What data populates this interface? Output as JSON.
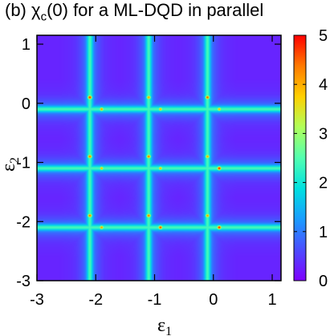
{
  "chart_data": {
    "type": "heatmap",
    "title_prefix": "(b) ",
    "title_symbol": "χ",
    "title_subscript": "c",
    "title_suffix": "(0) for a ML-DQD in parallel",
    "xlabel_symbol": "ε",
    "xlabel_subscript": "1",
    "ylabel_symbol": "ε",
    "ylabel_subscript": "2",
    "xlim": [
      -3,
      1.15
    ],
    "ylim": [
      -3,
      1.15
    ],
    "x_ticks": [
      -3,
      -2,
      -1,
      0,
      1
    ],
    "y_ticks": [
      -3,
      -2,
      -1,
      0,
      1
    ],
    "colorbar_range": [
      0,
      5
    ],
    "colorbar_ticks": [
      0,
      1,
      2,
      3,
      4,
      5
    ],
    "colormap": "jet",
    "line_positions": [
      -2.1,
      -1.1,
      -0.1
    ],
    "band_peak_value": 2.3,
    "background_value": 0.3,
    "hotspots": [
      {
        "x": -2.1,
        "y": 0.1,
        "value": 5.0
      },
      {
        "x": -1.9,
        "y": -0.1,
        "value": 4.3
      },
      {
        "x": -1.1,
        "y": 0.1,
        "value": 4.3
      },
      {
        "x": -0.9,
        "y": -0.1,
        "value": 4.0
      },
      {
        "x": -0.1,
        "y": 0.1,
        "value": 4.8
      },
      {
        "x": 0.1,
        "y": -0.1,
        "value": 4.0
      },
      {
        "x": -2.1,
        "y": -0.9,
        "value": 4.6
      },
      {
        "x": -1.9,
        "y": -1.1,
        "value": 4.0
      },
      {
        "x": -1.1,
        "y": -0.9,
        "value": 4.6
      },
      {
        "x": -0.9,
        "y": -1.1,
        "value": 4.0
      },
      {
        "x": -0.1,
        "y": -0.9,
        "value": 4.2
      },
      {
        "x": 0.1,
        "y": -1.1,
        "value": 5.0
      },
      {
        "x": -2.1,
        "y": -1.9,
        "value": 4.6
      },
      {
        "x": -1.9,
        "y": -2.1,
        "value": 4.3
      },
      {
        "x": -1.1,
        "y": -1.9,
        "value": 4.6
      },
      {
        "x": -0.9,
        "y": -2.1,
        "value": 4.8
      },
      {
        "x": -0.1,
        "y": -1.9,
        "value": 4.3
      },
      {
        "x": 0.1,
        "y": -2.1,
        "value": 5.0
      }
    ]
  }
}
